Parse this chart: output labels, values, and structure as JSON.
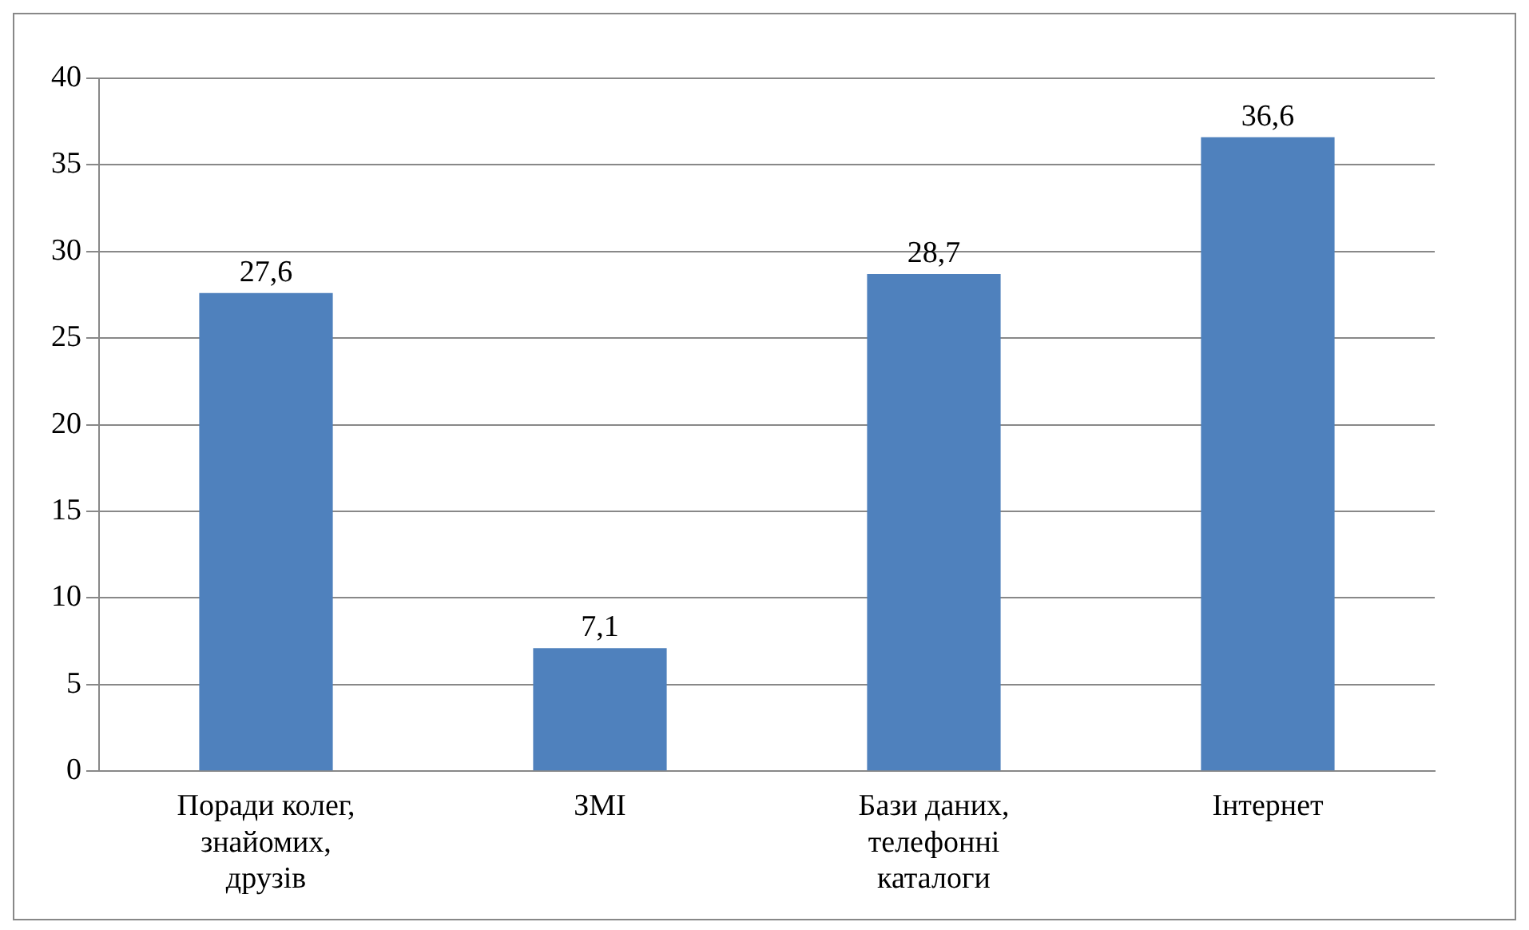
{
  "chart_data": {
    "type": "bar",
    "categories": [
      "Поради колег, знайомих, друзів",
      "ЗМІ",
      "Бази даних, телефонні каталоги",
      "Інтернет"
    ],
    "values": [
      27.6,
      7.1,
      28.7,
      36.6
    ],
    "color": "#4f81bd",
    "value_labels": [
      "27,6",
      "7,1",
      "28,7",
      "36,6"
    ],
    "ylim": [
      0,
      40
    ],
    "yticks": [
      0,
      5,
      10,
      15,
      20,
      25,
      30,
      35,
      40
    ],
    "grid": "y",
    "legend": false
  }
}
